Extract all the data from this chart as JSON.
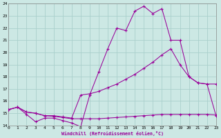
{
  "xlabel": "Windchill (Refroidissement éolien,°C)",
  "bg_color": "#cce8e4",
  "grid_color": "#aacfcc",
  "line_color": "#990099",
  "xlim": [
    0,
    23
  ],
  "ylim": [
    14,
    24
  ],
  "yticks": [
    14,
    15,
    16,
    17,
    18,
    19,
    20,
    21,
    22,
    23,
    24
  ],
  "xticks": [
    0,
    1,
    2,
    3,
    4,
    5,
    6,
    7,
    8,
    9,
    10,
    11,
    12,
    13,
    14,
    15,
    16,
    17,
    18,
    19,
    20,
    21,
    22,
    23
  ],
  "line1_x": [
    0,
    1,
    2,
    3,
    4,
    5,
    6,
    7,
    8,
    9,
    10,
    11,
    12,
    13,
    14,
    15,
    16,
    17,
    18,
    19,
    20,
    21,
    22,
    23
  ],
  "line1_y": [
    15.3,
    15.5,
    14.9,
    14.3,
    14.6,
    14.6,
    14.4,
    14.2,
    13.9,
    16.5,
    18.4,
    20.3,
    22.0,
    21.8,
    23.4,
    23.8,
    23.2,
    23.6,
    21.0,
    21.0,
    18.0,
    17.5,
    17.4,
    14.8
  ],
  "line2_x": [
    0,
    1,
    2,
    3,
    4,
    5,
    6,
    7,
    8,
    9,
    10,
    11,
    12,
    13,
    14,
    15,
    16,
    17,
    18,
    19,
    20,
    21,
    22,
    23
  ],
  "line2_y": [
    15.3,
    15.5,
    15.1,
    15.0,
    14.8,
    14.8,
    14.7,
    14.6,
    16.5,
    16.6,
    16.8,
    17.1,
    17.4,
    17.8,
    18.2,
    18.7,
    19.2,
    19.8,
    20.3,
    19.0,
    18.0,
    17.5,
    17.4,
    17.4
  ],
  "line3_x": [
    0,
    1,
    2,
    3,
    4,
    5,
    6,
    7,
    8,
    9,
    10,
    11,
    12,
    13,
    14,
    15,
    16,
    17,
    18,
    19,
    20,
    21,
    22,
    23
  ],
  "line3_y": [
    15.3,
    15.5,
    15.1,
    15.0,
    14.8,
    14.75,
    14.65,
    14.55,
    14.55,
    14.55,
    14.55,
    14.6,
    14.65,
    14.7,
    14.75,
    14.8,
    14.85,
    14.9,
    14.9,
    14.9,
    14.9,
    14.9,
    14.9,
    14.85
  ]
}
